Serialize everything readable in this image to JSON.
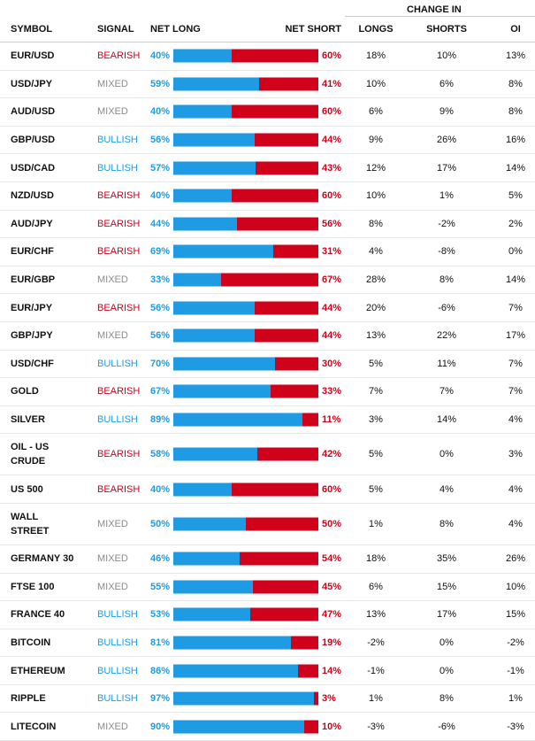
{
  "header": {
    "change_in": "CHANGE IN",
    "symbol": "SYMBOL",
    "signal": "SIGNAL",
    "net_long": "NET LONG",
    "net_short": "NET SHORT",
    "longs": "LONGS",
    "shorts": "SHORTS",
    "oi": "OI"
  },
  "colors": {
    "long": "#1e9be3",
    "short": "#d0021b"
  },
  "rows": [
    {
      "symbol": "EUR/USD",
      "signal": "BEARISH",
      "signal_color": "#d0021b",
      "net_long": 40,
      "net_long_label": "40%",
      "net_short": 60,
      "net_short_label": "60%",
      "longs": "18%",
      "shorts": "10%",
      "oi": "13%"
    },
    {
      "symbol": "USD/JPY",
      "signal": "MIXED",
      "signal_color": "#8c8c8c",
      "net_long": 59,
      "net_long_label": "59%",
      "net_short": 41,
      "net_short_label": "41%",
      "longs": "10%",
      "shorts": "6%",
      "oi": "8%"
    },
    {
      "symbol": "AUD/USD",
      "signal": "MIXED",
      "signal_color": "#8c8c8c",
      "net_long": 40,
      "net_long_label": "40%",
      "net_short": 60,
      "net_short_label": "60%",
      "longs": "6%",
      "shorts": "9%",
      "oi": "8%"
    },
    {
      "symbol": "GBP/USD",
      "signal": "BULLISH",
      "signal_color": "#1e9be3",
      "net_long": 56,
      "net_long_label": "56%",
      "net_short": 44,
      "net_short_label": "44%",
      "longs": "9%",
      "shorts": "26%",
      "oi": "16%"
    },
    {
      "symbol": "USD/CAD",
      "signal": "BULLISH",
      "signal_color": "#1e9be3",
      "net_long": 57,
      "net_long_label": "57%",
      "net_short": 43,
      "net_short_label": "43%",
      "longs": "12%",
      "shorts": "17%",
      "oi": "14%"
    },
    {
      "symbol": "NZD/USD",
      "signal": "BEARISH",
      "signal_color": "#d0021b",
      "net_long": 40,
      "net_long_label": "40%",
      "net_short": 60,
      "net_short_label": "60%",
      "longs": "10%",
      "shorts": "1%",
      "oi": "5%"
    },
    {
      "symbol": "AUD/JPY",
      "signal": "BEARISH",
      "signal_color": "#d0021b",
      "net_long": 44,
      "net_long_label": "44%",
      "net_short": 56,
      "net_short_label": "56%",
      "longs": "8%",
      "shorts": "-2%",
      "oi": "2%"
    },
    {
      "symbol": "EUR/CHF",
      "signal": "BEARISH",
      "signal_color": "#d0021b",
      "net_long": 69,
      "net_long_label": "69%",
      "net_short": 31,
      "net_short_label": "31%",
      "longs": "4%",
      "shorts": "-8%",
      "oi": "0%"
    },
    {
      "symbol": "EUR/GBP",
      "signal": "MIXED",
      "signal_color": "#8c8c8c",
      "net_long": 33,
      "net_long_label": "33%",
      "net_short": 67,
      "net_short_label": "67%",
      "longs": "28%",
      "shorts": "8%",
      "oi": "14%"
    },
    {
      "symbol": "EUR/JPY",
      "signal": "BEARISH",
      "signal_color": "#d0021b",
      "net_long": 56,
      "net_long_label": "56%",
      "net_short": 44,
      "net_short_label": "44%",
      "longs": "20%",
      "shorts": "-6%",
      "oi": "7%"
    },
    {
      "symbol": "GBP/JPY",
      "signal": "MIXED",
      "signal_color": "#8c8c8c",
      "net_long": 56,
      "net_long_label": "56%",
      "net_short": 44,
      "net_short_label": "44%",
      "longs": "13%",
      "shorts": "22%",
      "oi": "17%"
    },
    {
      "symbol": "USD/CHF",
      "signal": "BULLISH",
      "signal_color": "#1e9be3",
      "net_long": 70,
      "net_long_label": "70%",
      "net_short": 30,
      "net_short_label": "30%",
      "longs": "5%",
      "shorts": "11%",
      "oi": "7%"
    },
    {
      "symbol": "GOLD",
      "signal": "BEARISH",
      "signal_color": "#d0021b",
      "net_long": 67,
      "net_long_label": "67%",
      "net_short": 33,
      "net_short_label": "33%",
      "longs": "7%",
      "shorts": "7%",
      "oi": "7%"
    },
    {
      "symbol": "SILVER",
      "signal": "BULLISH",
      "signal_color": "#1e9be3",
      "net_long": 89,
      "net_long_label": "89%",
      "net_short": 11,
      "net_short_label": "11%",
      "longs": "3%",
      "shorts": "14%",
      "oi": "4%"
    },
    {
      "symbol": "OIL - US CRUDE",
      "signal": "BEARISH",
      "signal_color": "#d0021b",
      "net_long": 58,
      "net_long_label": "58%",
      "net_short": 42,
      "net_short_label": "42%",
      "longs": "5%",
      "shorts": "0%",
      "oi": "3%"
    },
    {
      "symbol": "US 500",
      "signal": "BEARISH",
      "signal_color": "#d0021b",
      "net_long": 40,
      "net_long_label": "40%",
      "net_short": 60,
      "net_short_label": "60%",
      "longs": "5%",
      "shorts": "4%",
      "oi": "4%"
    },
    {
      "symbol": "WALL STREET",
      "signal": "MIXED",
      "signal_color": "#8c8c8c",
      "net_long": 50,
      "net_long_label": "50%",
      "net_short": 50,
      "net_short_label": "50%",
      "longs": "1%",
      "shorts": "8%",
      "oi": "4%"
    },
    {
      "symbol": "GERMANY 30",
      "signal": "MIXED",
      "signal_color": "#8c8c8c",
      "net_long": 46,
      "net_long_label": "46%",
      "net_short": 54,
      "net_short_label": "54%",
      "longs": "18%",
      "shorts": "35%",
      "oi": "26%"
    },
    {
      "symbol": "FTSE 100",
      "signal": "MIXED",
      "signal_color": "#8c8c8c",
      "net_long": 55,
      "net_long_label": "55%",
      "net_short": 45,
      "net_short_label": "45%",
      "longs": "6%",
      "shorts": "15%",
      "oi": "10%"
    },
    {
      "symbol": "FRANCE 40",
      "signal": "BULLISH",
      "signal_color": "#1e9be3",
      "net_long": 53,
      "net_long_label": "53%",
      "net_short": 47,
      "net_short_label": "47%",
      "longs": "13%",
      "shorts": "17%",
      "oi": "15%"
    },
    {
      "symbol": "BITCOIN",
      "signal": "BULLISH",
      "signal_color": "#1e9be3",
      "net_long": 81,
      "net_long_label": "81%",
      "net_short": 19,
      "net_short_label": "19%",
      "longs": "-2%",
      "shorts": "0%",
      "oi": "-2%"
    },
    {
      "symbol": "ETHEREUM",
      "signal": "BULLISH",
      "signal_color": "#1e9be3",
      "net_long": 86,
      "net_long_label": "86%",
      "net_short": 14,
      "net_short_label": "14%",
      "longs": "-1%",
      "shorts": "0%",
      "oi": "-1%"
    },
    {
      "symbol": "RIPPLE",
      "signal": "BULLISH",
      "signal_color": "#1e9be3",
      "net_long": 97,
      "net_long_label": "97%",
      "net_short": 3,
      "net_short_label": "3%",
      "longs": "1%",
      "shorts": "8%",
      "oi": "1%"
    },
    {
      "symbol": "LITECOIN",
      "signal": "MIXED",
      "signal_color": "#8c8c8c",
      "net_long": 90,
      "net_long_label": "90%",
      "net_short": 10,
      "net_short_label": "10%",
      "longs": "-3%",
      "shorts": "-6%",
      "oi": "-3%"
    }
  ]
}
